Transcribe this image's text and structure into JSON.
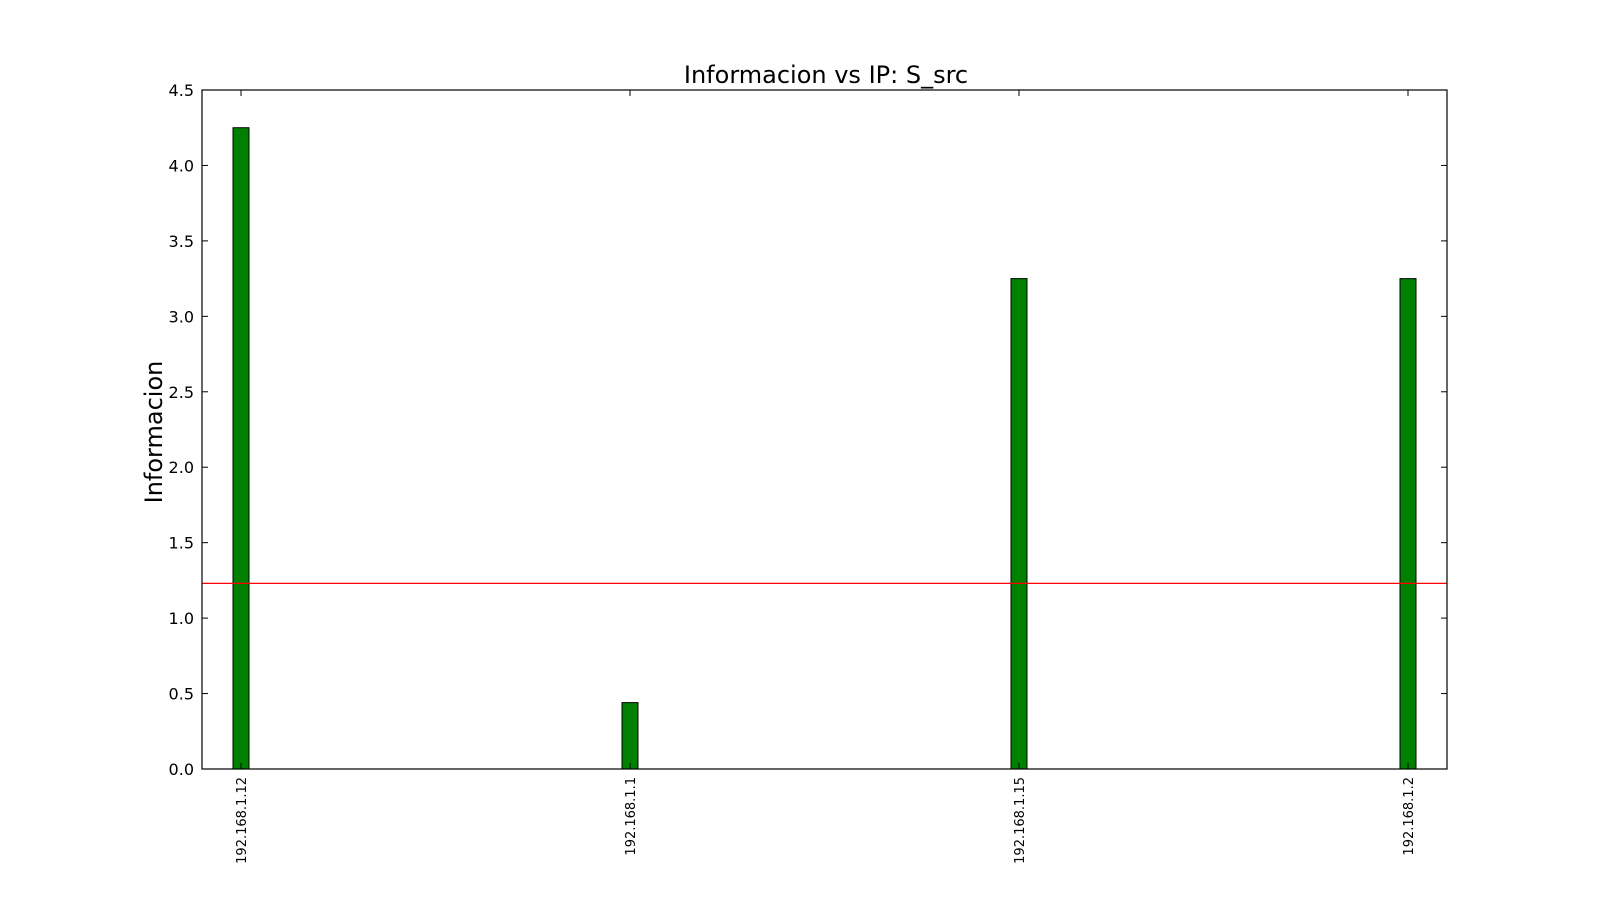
{
  "chart_data": {
    "type": "bar",
    "title": "Informacion vs IP: S_src",
    "xlabel": "",
    "ylabel": "Informacion",
    "categories": [
      "192.168.1.12",
      "192.168.1.1",
      "192.168.1.15",
      "192.168.1.2"
    ],
    "values": [
      4.25,
      0.44,
      3.25,
      3.25
    ],
    "ylim": [
      0,
      4.5
    ],
    "yticks": [
      "0.0",
      "0.5",
      "1.0",
      "1.5",
      "2.0",
      "2.5",
      "3.0",
      "3.5",
      "4.0",
      "4.5"
    ],
    "reference_line": {
      "y": 1.23,
      "color": "#ff0000"
    },
    "bar_color": "#008000",
    "bar_edge_color": "#000000",
    "grid": false,
    "legend": "none"
  }
}
